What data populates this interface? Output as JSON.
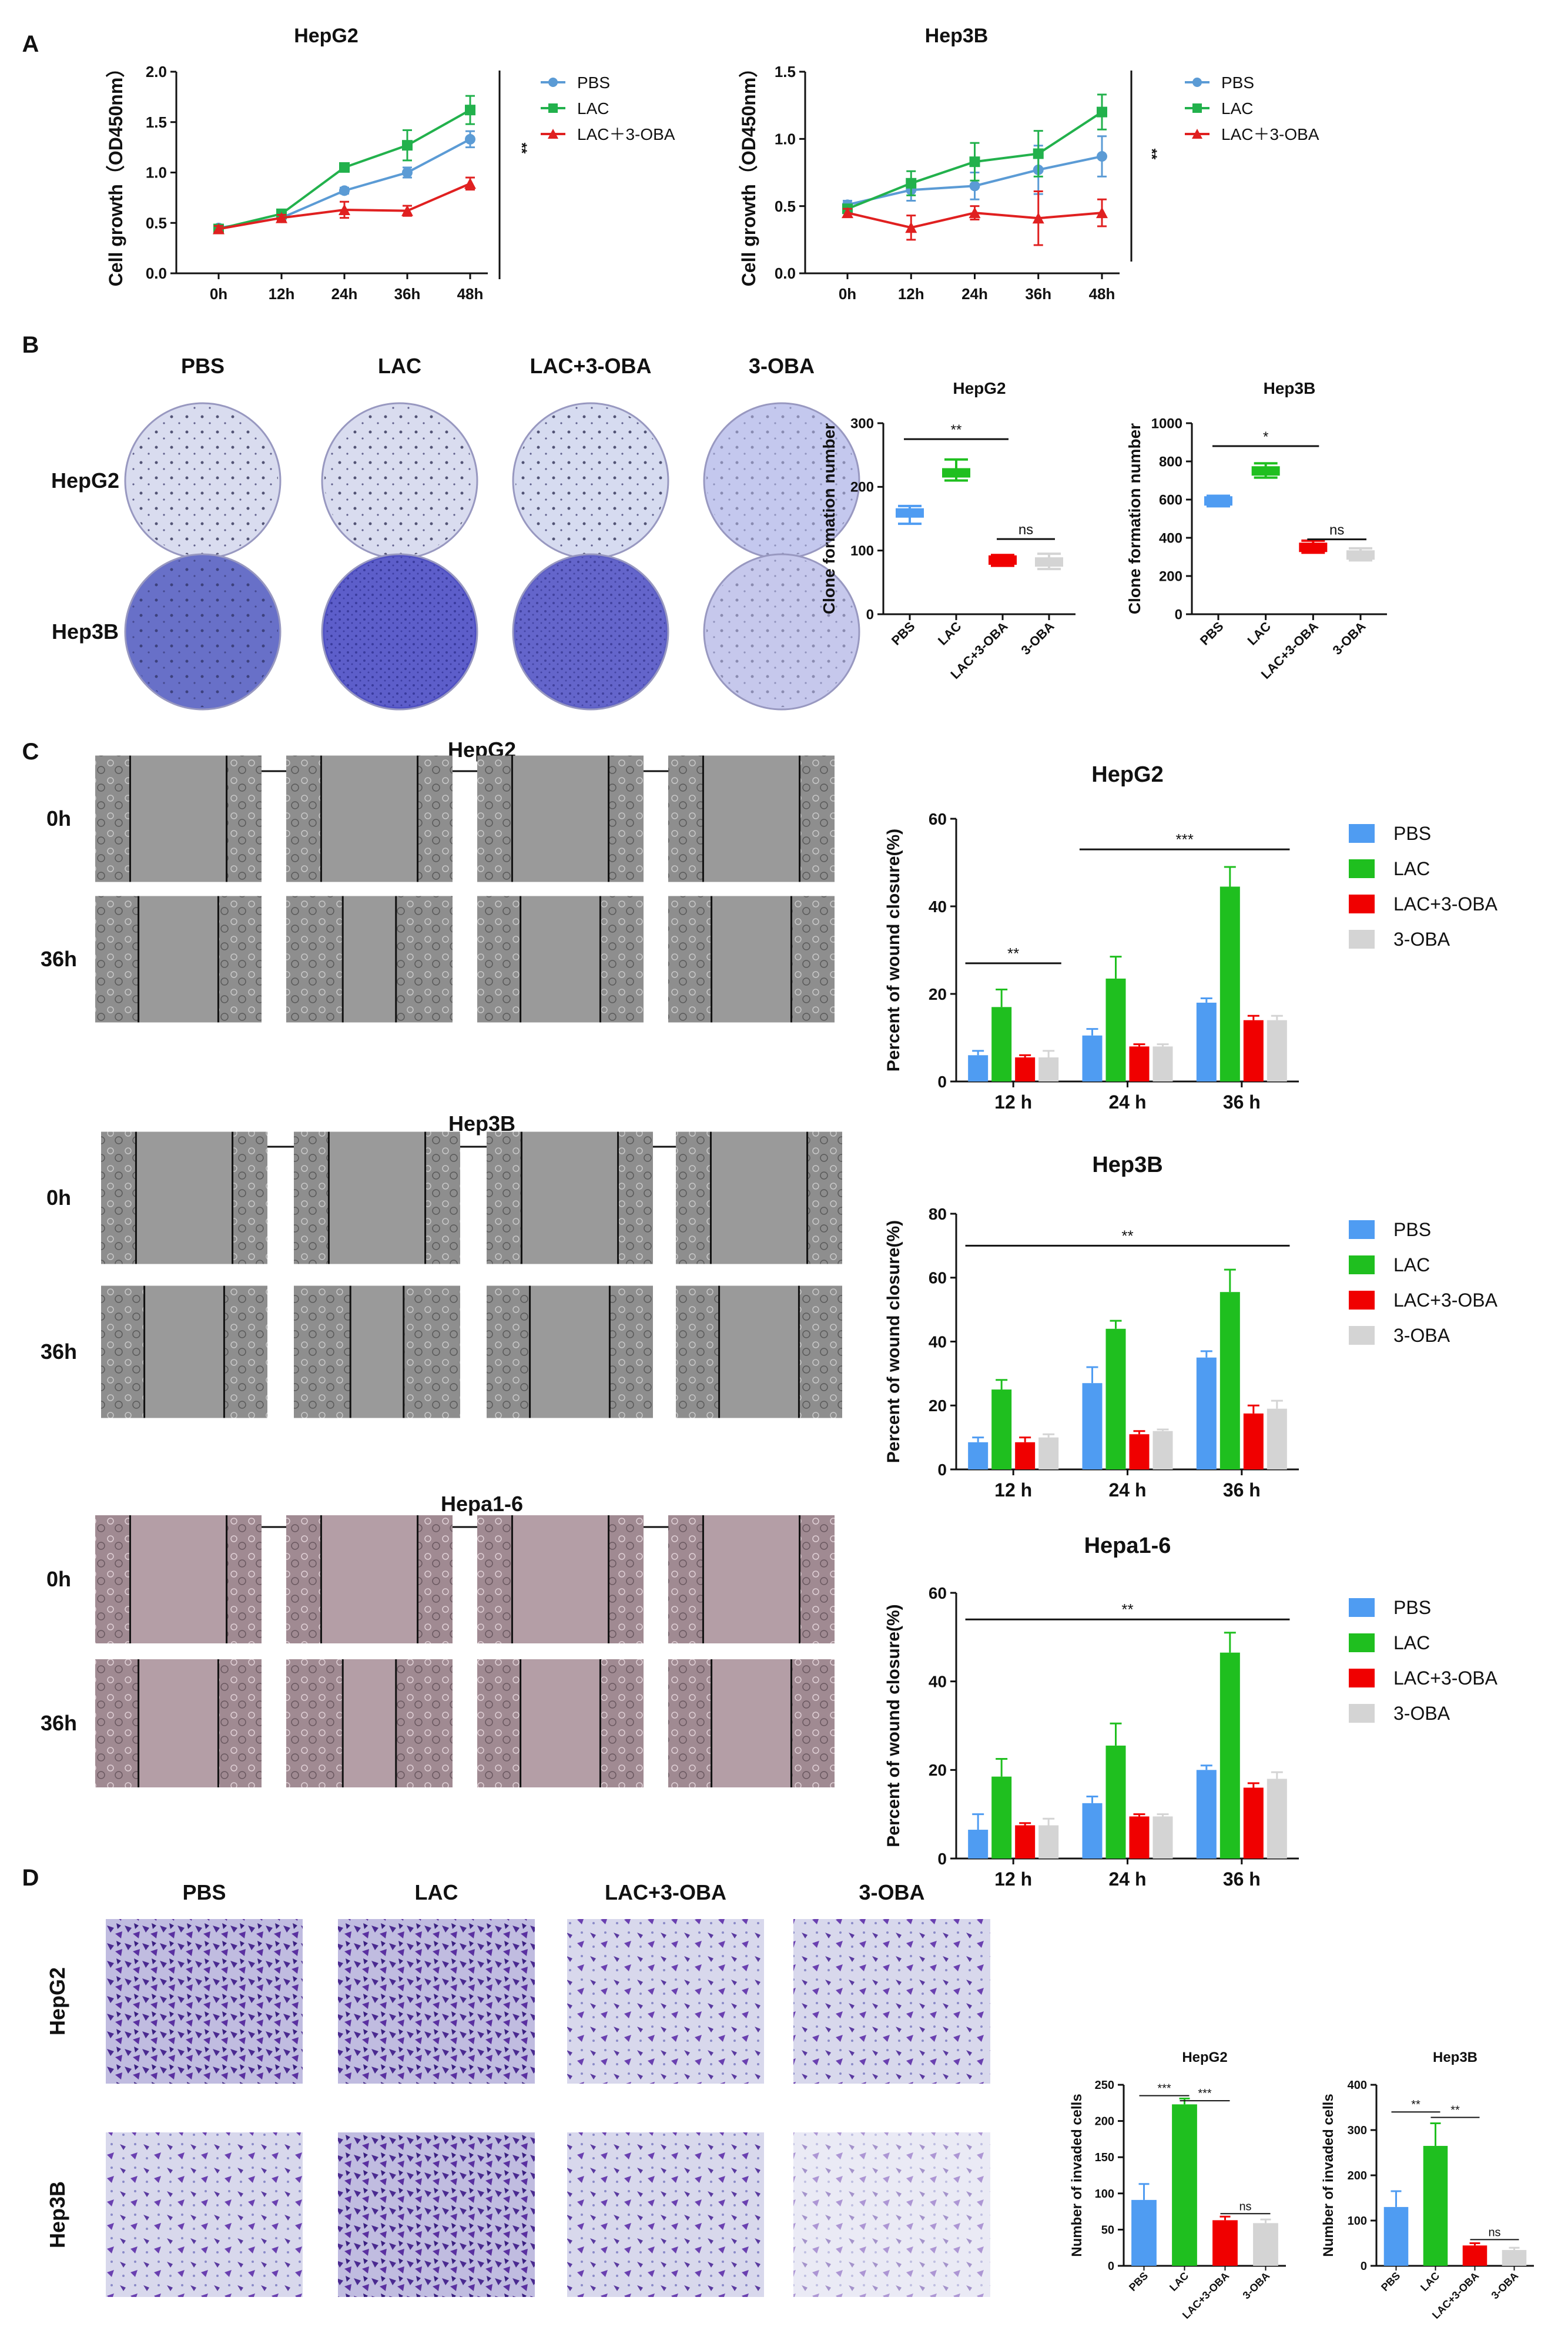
{
  "figure": {
    "panel_letters": [
      "A",
      "B",
      "C",
      "D"
    ],
    "micro_col_labels": [
      "PBS",
      "LAC",
      "LAC+3-OBA",
      "3-OBA"
    ],
    "colors": {
      "PBS_line": "#5b9bd5",
      "LAC_line": "#22b14c",
      "LAC3_line": "#e02020",
      "PBS_bar": "#4f9cf2",
      "LAC_bar": "#1fbf1f",
      "LAC3_bar": "#f00000",
      "OBA_bar": "#d4d4d4"
    },
    "panel_a": {
      "legend": [
        "PBS",
        "LAC",
        "LAC＋3-OBA"
      ],
      "row_sig": [
        "**",
        "**"
      ]
    },
    "panel_b": {
      "row_labels": [
        "HepG2",
        "Hep3B"
      ]
    },
    "panel_c": {
      "time_labels": [
        "0h",
        "36h"
      ],
      "bar_legend": [
        "PBS",
        "LAC",
        "LAC+3-OBA",
        "3-OBA"
      ],
      "groups": [
        {
          "title": "HepG2"
        },
        {
          "title": "Hep3B"
        },
        {
          "title": "Hepa1-6"
        }
      ]
    },
    "panel_d": {
      "row_labels": [
        "HepG2",
        "Hep3B"
      ]
    }
  },
  "chart_data": [
    {
      "type": "line",
      "id": "A1",
      "title": "HepG2",
      "ylabel": "Cell growth（OD450nm）",
      "xlabel": "",
      "x": [
        "0h",
        "12h",
        "24h",
        "36h",
        "48h"
      ],
      "ylim": [
        0,
        2.0
      ],
      "yticks": [
        "0.0",
        "0.5",
        "1.0",
        "1.5",
        "2.0"
      ],
      "ytick_values": [
        0,
        0.5,
        1.0,
        1.5,
        2.0
      ],
      "series": [
        {
          "name": "PBS",
          "values": [
            0.45,
            0.55,
            0.82,
            1.0,
            1.33
          ],
          "errors": [
            0.03,
            0.03,
            0.03,
            0.05,
            0.08
          ]
        },
        {
          "name": "LAC",
          "values": [
            0.44,
            0.59,
            1.05,
            1.27,
            1.62
          ],
          "errors": [
            0.03,
            0.03,
            0.04,
            0.15,
            0.14
          ]
        },
        {
          "name": "LAC＋3-OBA",
          "values": [
            0.44,
            0.55,
            0.63,
            0.62,
            0.89
          ],
          "errors": [
            0.03,
            0.03,
            0.08,
            0.05,
            0.06
          ]
        }
      ],
      "significance": "**"
    },
    {
      "type": "line",
      "id": "A2",
      "title": "Hep3B",
      "ylabel": "Cell growth（OD450nm）",
      "xlabel": "",
      "x": [
        "0h",
        "12h",
        "24h",
        "36h",
        "48h"
      ],
      "ylim": [
        0,
        1.5
      ],
      "yticks": [
        "0.0",
        "0.5",
        "1.0",
        "1.5"
      ],
      "ytick_values": [
        0,
        0.5,
        1.0,
        1.5
      ],
      "series": [
        {
          "name": "PBS",
          "values": [
            0.51,
            0.62,
            0.65,
            0.77,
            0.87
          ],
          "errors": [
            0.03,
            0.08,
            0.1,
            0.18,
            0.15
          ]
        },
        {
          "name": "LAC",
          "values": [
            0.48,
            0.67,
            0.83,
            0.89,
            1.2
          ],
          "errors": [
            0.03,
            0.09,
            0.14,
            0.17,
            0.13
          ]
        },
        {
          "name": "LAC＋3-OBA",
          "values": [
            0.45,
            0.34,
            0.45,
            0.41,
            0.45
          ],
          "errors": [
            0.03,
            0.09,
            0.05,
            0.2,
            0.1
          ]
        }
      ],
      "significance": "**"
    },
    {
      "type": "box",
      "id": "B1",
      "title": "HepG2",
      "ylabel": "Clone formation number",
      "categories": [
        "PBS",
        "LAC",
        "LAC+3-OBA",
        "3-OBA"
      ],
      "ylim": [
        0,
        300
      ],
      "yticks": [
        "0",
        "100",
        "200",
        "300"
      ],
      "ytick_values": [
        0,
        100,
        200,
        300
      ],
      "values": [
        159,
        222,
        85,
        82
      ],
      "ranges": [
        [
          142,
          170
        ],
        [
          210,
          243
        ],
        [
          76,
          93
        ],
        [
          71,
          95
        ]
      ],
      "comparisons": [
        {
          "from": 0,
          "to": 2,
          "label": "**",
          "y": 275
        },
        {
          "from": 2,
          "to": 3,
          "label": "ns",
          "y": 118
        }
      ]
    },
    {
      "type": "box",
      "id": "B2",
      "title": "Hep3B",
      "ylabel": "Clone formation number",
      "categories": [
        "PBS",
        "LAC",
        "LAC+3-OBA",
        "3-OBA"
      ],
      "ylim": [
        0,
        1000
      ],
      "yticks": [
        "0",
        "200",
        "400",
        "600",
        "800",
        "1000"
      ],
      "ytick_values": [
        0,
        200,
        400,
        600,
        800,
        1000
      ],
      "values": [
        593,
        750,
        350,
        310
      ],
      "ranges": [
        [
          565,
          620
        ],
        [
          715,
          790
        ],
        [
          322,
          385
        ],
        [
          282,
          345
        ]
      ],
      "comparisons": [
        {
          "from": 0,
          "to": 2,
          "label": "*",
          "y": 880
        },
        {
          "from": 2,
          "to": 3,
          "label": "ns",
          "y": 392
        }
      ]
    },
    {
      "type": "bar",
      "id": "C1",
      "title": "HepG2",
      "ylabel": "Percent of wound closure(%)",
      "categories": [
        "12 h",
        "24 h",
        "36 h"
      ],
      "ylim": [
        0,
        60
      ],
      "yticks": [
        "0",
        "20",
        "40",
        "60"
      ],
      "ytick_values": [
        0,
        20,
        40,
        60
      ],
      "series": [
        {
          "name": "PBS",
          "values": [
            6,
            10.5,
            18
          ],
          "errors": [
            1,
            1.5,
            1
          ]
        },
        {
          "name": "LAC",
          "values": [
            17,
            23.5,
            44.5
          ],
          "errors": [
            4,
            5,
            4.5
          ]
        },
        {
          "name": "LAC+3-OBA",
          "values": [
            5.5,
            8,
            14
          ],
          "errors": [
            0.5,
            0.5,
            1
          ]
        },
        {
          "name": "3-OBA",
          "values": [
            5.5,
            8,
            14
          ],
          "errors": [
            1.5,
            0.5,
            1
          ]
        }
      ],
      "significance": [
        {
          "from": 0,
          "to": 0,
          "label": "**",
          "y": 27
        },
        {
          "from": 1,
          "to": 2,
          "label": "***",
          "y": 53
        }
      ]
    },
    {
      "type": "bar",
      "id": "C2",
      "title": "Hep3B",
      "ylabel": "Percent of wound closure(%)",
      "categories": [
        "12 h",
        "24 h",
        "36 h"
      ],
      "ylim": [
        0,
        80
      ],
      "yticks": [
        "0",
        "20",
        "40",
        "60",
        "80"
      ],
      "ytick_values": [
        0,
        20,
        40,
        60,
        80
      ],
      "series": [
        {
          "name": "PBS",
          "values": [
            8.5,
            27,
            35
          ],
          "errors": [
            1.5,
            5,
            2
          ]
        },
        {
          "name": "LAC",
          "values": [
            25,
            44,
            55.5
          ],
          "errors": [
            3,
            2.5,
            7
          ]
        },
        {
          "name": "LAC+3-OBA",
          "values": [
            8.5,
            11,
            17.5
          ],
          "errors": [
            1.5,
            1,
            2.5
          ]
        },
        {
          "name": "3-OBA",
          "values": [
            10,
            12,
            19
          ],
          "errors": [
            1,
            0.5,
            2.5
          ]
        }
      ],
      "significance": [
        {
          "from": 0,
          "to": 2,
          "label": "**",
          "y": 70
        }
      ]
    },
    {
      "type": "bar",
      "id": "C3",
      "title": "Hepa1-6",
      "ylabel": "Percent of wound closure(%)",
      "categories": [
        "12 h",
        "24 h",
        "36 h"
      ],
      "ylim": [
        0,
        60
      ],
      "yticks": [
        "0",
        "20",
        "40",
        "60"
      ],
      "ytick_values": [
        0,
        20,
        40,
        60
      ],
      "series": [
        {
          "name": "PBS",
          "values": [
            6.5,
            12.5,
            20
          ],
          "errors": [
            3.5,
            1.5,
            1
          ]
        },
        {
          "name": "LAC",
          "values": [
            18.5,
            25.5,
            46.5
          ],
          "errors": [
            4,
            5,
            4.5
          ]
        },
        {
          "name": "LAC+3-OBA",
          "values": [
            7.5,
            9.5,
            16
          ],
          "errors": [
            0.5,
            0.5,
            1
          ]
        },
        {
          "name": "3-OBA",
          "values": [
            7.5,
            9.5,
            18
          ],
          "errors": [
            1.5,
            0.5,
            1.5
          ]
        }
      ],
      "significance": [
        {
          "from": 0,
          "to": 2,
          "label": "**",
          "y": 54
        }
      ]
    },
    {
      "type": "bar",
      "id": "D1",
      "title": "HepG2",
      "ylabel": "Number of invaded cells",
      "categories": [
        "PBS",
        "LAC",
        "LAC+3-OBA",
        "3-OBA"
      ],
      "ylim": [
        0,
        250
      ],
      "yticks": [
        "0",
        "50",
        "100",
        "150",
        "200",
        "250"
      ],
      "ytick_values": [
        0,
        50,
        100,
        150,
        200,
        250
      ],
      "values": [
        91,
        223,
        63,
        59
      ],
      "errors": [
        22,
        8,
        5,
        5
      ],
      "comparisons": [
        {
          "from": 0,
          "to": 1,
          "label": "***",
          "y": 235
        },
        {
          "from": 1,
          "to": 2,
          "label": "***",
          "y": 228
        },
        {
          "from": 2,
          "to": 3,
          "label": "ns",
          "y": 72
        }
      ]
    },
    {
      "type": "bar",
      "id": "D2",
      "title": "Hep3B",
      "ylabel": "Number of invaded cells",
      "categories": [
        "PBS",
        "LAC",
        "LAC+3-OBA",
        "3-OBA"
      ],
      "ylim": [
        0,
        400
      ],
      "yticks": [
        "0",
        "100",
        "200",
        "300",
        "400"
      ],
      "ytick_values": [
        0,
        100,
        200,
        300,
        400
      ],
      "values": [
        130,
        265,
        45,
        35
      ],
      "errors": [
        35,
        50,
        5,
        5
      ],
      "comparisons": [
        {
          "from": 0,
          "to": 1,
          "label": "**",
          "y": 340
        },
        {
          "from": 1,
          "to": 2,
          "label": "**",
          "y": 328
        },
        {
          "from": 2,
          "to": 3,
          "label": "ns",
          "y": 58
        }
      ]
    }
  ]
}
